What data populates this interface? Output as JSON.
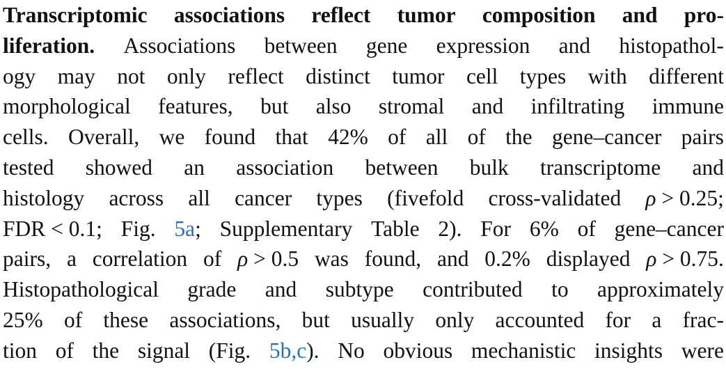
{
  "paragraph": {
    "lines": [
      {
        "words": [
          "Transcriptomic",
          "associations",
          "reflect",
          "tumor",
          "composition",
          "and",
          "pro-"
        ],
        "bold_count": 7,
        "justify": true
      },
      {
        "words": [
          "liferation.",
          "Associations",
          "between",
          "gene",
          "expression",
          "and",
          "histopathol-"
        ],
        "bold_count": 1,
        "justify": true
      },
      {
        "words": [
          "ogy",
          "may",
          "not",
          "only",
          "reflect",
          "distinct",
          "tumor",
          "cell",
          "types",
          "with",
          "different"
        ],
        "justify": true
      },
      {
        "words": [
          "morphological",
          "features,",
          "but",
          "also",
          "stromal",
          "and",
          "infiltrating",
          "immune"
        ],
        "justify": true
      },
      {
        "words": [
          "cells.",
          "Overall,",
          "we",
          "found",
          "that",
          "42%",
          "of",
          "all",
          "of",
          "the",
          "gene–cancer",
          "pairs"
        ],
        "justify": true
      },
      {
        "words": [
          "tested",
          "showed",
          "an",
          "association",
          "between",
          "bulk",
          "transcriptome",
          "and"
        ],
        "justify": true
      },
      {
        "words": [
          "histology",
          "across",
          "all",
          "cancer",
          "types",
          "(fivefold",
          "cross-validated",
          "ρ > 0.25;"
        ],
        "justify": true
      },
      {
        "words": [
          "FDR < 0.1;",
          "Fig.",
          "5a;",
          "Supplementary",
          "Table",
          "2).",
          "For",
          "6%",
          "of",
          "gene–cancer"
        ],
        "justify": true
      },
      {
        "words": [
          "pairs,",
          "a",
          "correlation",
          "of",
          "ρ > 0.5",
          "was",
          "found,",
          "and",
          "0.2%",
          "displayed",
          "ρ > 0.75."
        ],
        "justify": true
      },
      {
        "words": [
          "Histopathological",
          "grade",
          "and",
          "subtype",
          "contributed",
          "to",
          "approximately"
        ],
        "justify": true
      },
      {
        "words": [
          "25%",
          "of",
          "these",
          "associations,",
          "but",
          "usually",
          "only",
          "accounted",
          "for",
          "a",
          "frac-"
        ],
        "justify": true
      },
      {
        "words": [
          "tion",
          "of",
          "the",
          "signal",
          "(Fig.",
          "5b,c).",
          "No",
          "obvious",
          "mechanistic",
          "insights",
          "were"
        ],
        "justify": true
      }
    ]
  },
  "styles": {
    "text_color": "#111111",
    "link_color": "#2a6fb8",
    "links": [
      "5a;",
      "5b,c)."
    ],
    "italic_tokens": [
      "ρ > 0.25;",
      "ρ > 0.5",
      "ρ > 0.75."
    ]
  }
}
